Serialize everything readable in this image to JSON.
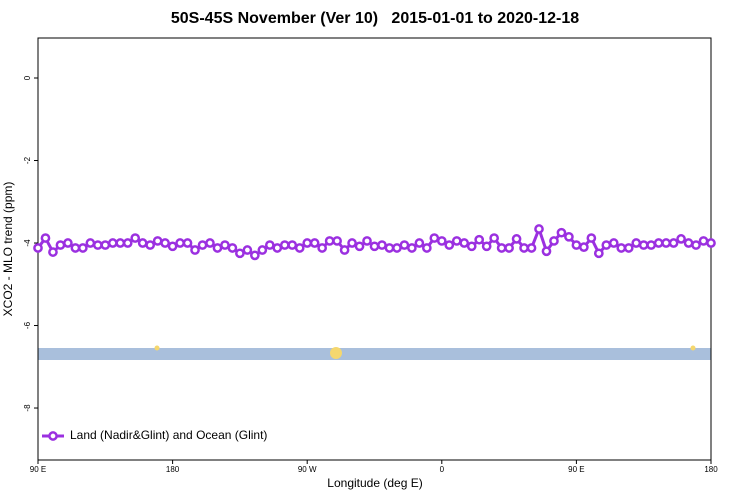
{
  "chart_data": {
    "type": "line",
    "title": "50S-45S November (Ver 10)   2015-01-01 to 2020-12-18",
    "xlabel": "Longitude (deg E)",
    "ylabel": "XCO2 - MLO trend (ppm)",
    "xlim": [
      90,
      540
    ],
    "xticks": [
      {
        "value": 90,
        "label": "90 E"
      },
      180,
      {
        "value": 270,
        "label": "90 W"
      },
      {
        "value": 360,
        "label": "0"
      },
      {
        "value": 450,
        "label": "90 E"
      },
      {
        "value": 540,
        "label": "180"
      }
    ],
    "ylim": [
      -9.26,
      0.97
    ],
    "yticks": [
      0,
      -2,
      -4,
      -6,
      -8
    ],
    "legend": "bottom-left",
    "x": [
      90,
      95,
      100,
      105,
      110,
      115,
      120,
      125,
      130,
      135,
      140,
      145,
      150,
      155,
      160,
      165,
      170,
      175,
      180,
      185,
      190,
      195,
      200,
      205,
      210,
      215,
      220,
      225,
      230,
      235,
      240,
      245,
      250,
      255,
      260,
      265,
      270,
      275,
      280,
      285,
      290,
      295,
      300,
      305,
      310,
      315,
      320,
      325,
      330,
      335,
      340,
      345,
      350,
      355,
      360,
      365,
      370,
      375,
      380,
      385,
      390,
      395,
      400,
      405,
      410,
      415,
      420,
      425,
      430,
      435,
      440,
      445,
      450,
      455,
      460,
      465,
      470,
      475,
      480,
      485,
      490,
      495,
      500,
      505,
      510,
      515,
      520,
      525,
      530,
      535,
      540
    ],
    "series": [
      {
        "name": "Land (Nadir&Glint) and Ocean (Glint)",
        "color": "#9b30e0",
        "values": [
          -4.12,
          -3.88,
          -4.22,
          -4.05,
          -4.0,
          -4.12,
          -4.12,
          -4.0,
          -4.05,
          -4.05,
          -4.0,
          -4.0,
          -4.0,
          -3.88,
          -4.0,
          -4.05,
          -3.95,
          -4.0,
          -4.08,
          -4.0,
          -4.0,
          -4.17,
          -4.05,
          -4.0,
          -4.12,
          -4.05,
          -4.12,
          -4.25,
          -4.17,
          -4.3,
          -4.17,
          -4.05,
          -4.12,
          -4.05,
          -4.05,
          -4.12,
          -4.0,
          -4.0,
          -4.12,
          -3.95,
          -3.95,
          -4.17,
          -4.0,
          -4.08,
          -3.95,
          -4.08,
          -4.05,
          -4.12,
          -4.12,
          -4.05,
          -4.12,
          -4.0,
          -4.12,
          -3.88,
          -3.95,
          -4.05,
          -3.95,
          -4.0,
          -4.08,
          -3.92,
          -4.08,
          -3.88,
          -4.12,
          -4.12,
          -3.9,
          -4.12,
          -4.12,
          -3.66,
          -4.2,
          -3.95,
          -3.75,
          -3.85,
          -4.05,
          -4.1,
          -3.88,
          -4.25,
          -4.05,
          -4.0,
          -4.12,
          -4.12,
          -4.0,
          -4.05,
          -4.05,
          -4.0,
          -4.0,
          -4.0,
          -3.9,
          -4.0,
          -4.05,
          -3.95,
          -4.0
        ]
      }
    ]
  }
}
